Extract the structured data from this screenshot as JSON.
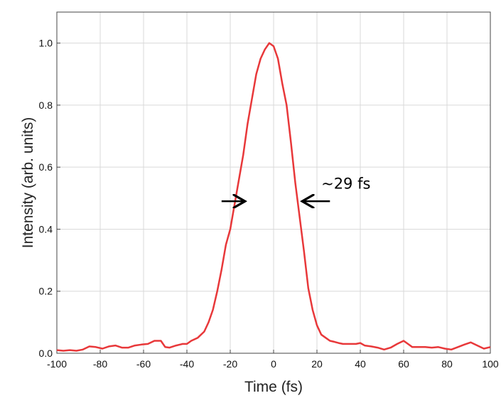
{
  "chart_data": {
    "type": "line",
    "title": "",
    "xlabel": "Time (fs)",
    "ylabel": "Intensity (arb. units)",
    "xlim": [
      -100,
      100
    ],
    "ylim": [
      0,
      1.1
    ],
    "x_ticks": [
      "-100",
      "-80",
      "-60",
      "-40",
      "-20",
      "0",
      "20",
      "40",
      "60",
      "80",
      "100"
    ],
    "y_ticks": [
      "0.0",
      "0.2",
      "0.4",
      "0.6",
      "0.8",
      "1.0"
    ],
    "grid": true,
    "line_color": "#e8383a",
    "series": [
      {
        "x": [
          -100,
          -97,
          -94,
          -91,
          -88,
          -85,
          -82,
          -79,
          -76,
          -73,
          -70,
          -67,
          -64,
          -61,
          -58,
          -55,
          -52,
          -50,
          -48,
          -45,
          -42,
          -40,
          -38,
          -35,
          -32,
          -30,
          -28,
          -26,
          -24,
          -22,
          -20,
          -18,
          -16,
          -14,
          -12,
          -10,
          -8,
          -6,
          -4,
          -2,
          0,
          2,
          4,
          6,
          8,
          10,
          12,
          14,
          16,
          18,
          20,
          22,
          24,
          26,
          28,
          30,
          32,
          35,
          38,
          40,
          42,
          45,
          48,
          51,
          54,
          57,
          60,
          62,
          64,
          67,
          70,
          73,
          76,
          79,
          82,
          85,
          88,
          91,
          94,
          97,
          100
        ],
        "y": [
          0.01,
          0.008,
          0.01,
          0.008,
          0.012,
          0.022,
          0.02,
          0.015,
          0.022,
          0.025,
          0.018,
          0.018,
          0.025,
          0.028,
          0.03,
          0.04,
          0.04,
          0.02,
          0.018,
          0.025,
          0.03,
          0.03,
          0.04,
          0.05,
          0.07,
          0.1,
          0.14,
          0.2,
          0.27,
          0.35,
          0.4,
          0.48,
          0.56,
          0.64,
          0.74,
          0.82,
          0.9,
          0.95,
          0.98,
          1.0,
          0.99,
          0.95,
          0.87,
          0.8,
          0.68,
          0.55,
          0.44,
          0.33,
          0.21,
          0.14,
          0.09,
          0.06,
          0.05,
          0.04,
          0.037,
          0.033,
          0.03,
          0.03,
          0.03,
          0.033,
          0.025,
          0.022,
          0.018,
          0.012,
          0.018,
          0.03,
          0.04,
          0.03,
          0.02,
          0.02,
          0.02,
          0.018,
          0.02,
          0.015,
          0.012,
          0.02,
          0.028,
          0.035,
          0.025,
          0.015,
          0.02
        ]
      }
    ],
    "annotations": [
      {
        "text": "~29 fs",
        "x": 22,
        "y": 0.53
      }
    ],
    "fwhm_arrows": [
      {
        "direction": "right",
        "x_from": -24,
        "x_to": -14,
        "y": 0.49
      },
      {
        "direction": "left",
        "x_from": 26,
        "x_to": 14,
        "y": 0.49
      }
    ]
  }
}
